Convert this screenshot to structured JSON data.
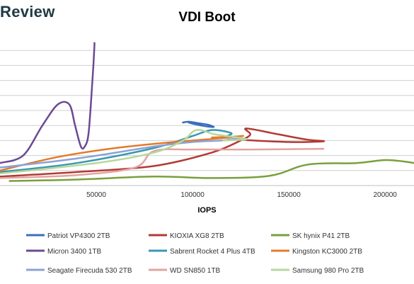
{
  "brand": {
    "text": "Review"
  },
  "chart_data": {
    "type": "line",
    "title": "VDI Boot",
    "xlabel": "IOPS",
    "ylabel": "",
    "xlim": [
      0,
      215000
    ],
    "ylim": [
      0,
      10
    ],
    "x_ticks": [
      50000,
      100000,
      150000,
      200000
    ],
    "y_gridlines": [
      1,
      2,
      3,
      4,
      5,
      6,
      7,
      8,
      9
    ],
    "grid": "horizontal",
    "legend_position": "bottom",
    "series": [
      {
        "name": "Patriot VP4300 2TB",
        "color": "#3b6fba",
        "x": [
          95000,
          98000,
          103000,
          108000,
          111000,
          107000,
          101000,
          98000
        ],
        "y": [
          4.2,
          4.25,
          4.15,
          4.05,
          3.9,
          3.95,
          4.1,
          4.2
        ]
      },
      {
        "name": "KIOXIA XG8 2TB",
        "color": "#b23a34",
        "x": [
          0,
          40000,
          80000,
          110000,
          125000,
          130000,
          128000,
          145000,
          160000,
          168000,
          150000,
          125000
        ],
        "y": [
          0.6,
          0.9,
          1.3,
          2.2,
          3.0,
          3.4,
          3.8,
          3.4,
          3.05,
          2.95,
          2.9,
          3.05
        ]
      },
      {
        "name": "SK hynix P41 2TB",
        "color": "#79a03c",
        "x": [
          5000,
          40000,
          80000,
          110000,
          140000,
          160000,
          185000,
          200000,
          210000,
          215000
        ],
        "y": [
          0.3,
          0.4,
          0.6,
          0.5,
          0.65,
          1.4,
          1.5,
          1.7,
          1.6,
          1.5
        ]
      },
      {
        "name": "Micron 3400 1TB",
        "color": "#6a4a93",
        "x": [
          0,
          12000,
          22000,
          30000,
          36000,
          39000,
          42000,
          44000,
          46000,
          48000,
          49000,
          49000
        ],
        "y": [
          1.5,
          2.0,
          4.0,
          5.4,
          5.4,
          4.0,
          2.6,
          2.6,
          3.5,
          7.0,
          9.2,
          9.5
        ]
      },
      {
        "name": "Sabrent Rocket 4 Plus 4TB",
        "color": "#3a97b0",
        "x": [
          0,
          40000,
          80000,
          100000,
          110000,
          120000,
          118000
        ],
        "y": [
          0.9,
          1.5,
          2.5,
          3.3,
          3.7,
          3.5,
          3.3
        ]
      },
      {
        "name": "Kingston KC3000 2TB",
        "color": "#e37b2b",
        "x": [
          0,
          30000,
          60000,
          90000,
          110000,
          126000,
          120000,
          110000
        ],
        "y": [
          1.0,
          1.9,
          2.5,
          2.9,
          3.1,
          3.3,
          3.25,
          3.2
        ]
      },
      {
        "name": "Seagate Firecuda 530 2TB",
        "color": "#8aa3d6",
        "x": [
          0,
          40000,
          80000,
          100000,
          115000,
          125000,
          118000
        ],
        "y": [
          1.2,
          1.8,
          2.6,
          2.9,
          3.0,
          3.15,
          3.05
        ]
      },
      {
        "name": "WD SN850 1TB",
        "color": "#e3a3a0",
        "x": [
          0,
          40000,
          70000,
          80000,
          100000,
          130000,
          168000
        ],
        "y": [
          0.5,
          0.7,
          1.2,
          2.3,
          2.4,
          2.4,
          2.45
        ]
      },
      {
        "name": "Samsung 980 Pro 2TB",
        "color": "#b8d79c",
        "x": [
          0,
          50000,
          80000,
          95000,
          102000,
          112000,
          128000,
          116000
        ],
        "y": [
          0.8,
          1.5,
          2.2,
          3.0,
          3.7,
          3.4,
          3.1,
          3.0
        ]
      }
    ]
  }
}
